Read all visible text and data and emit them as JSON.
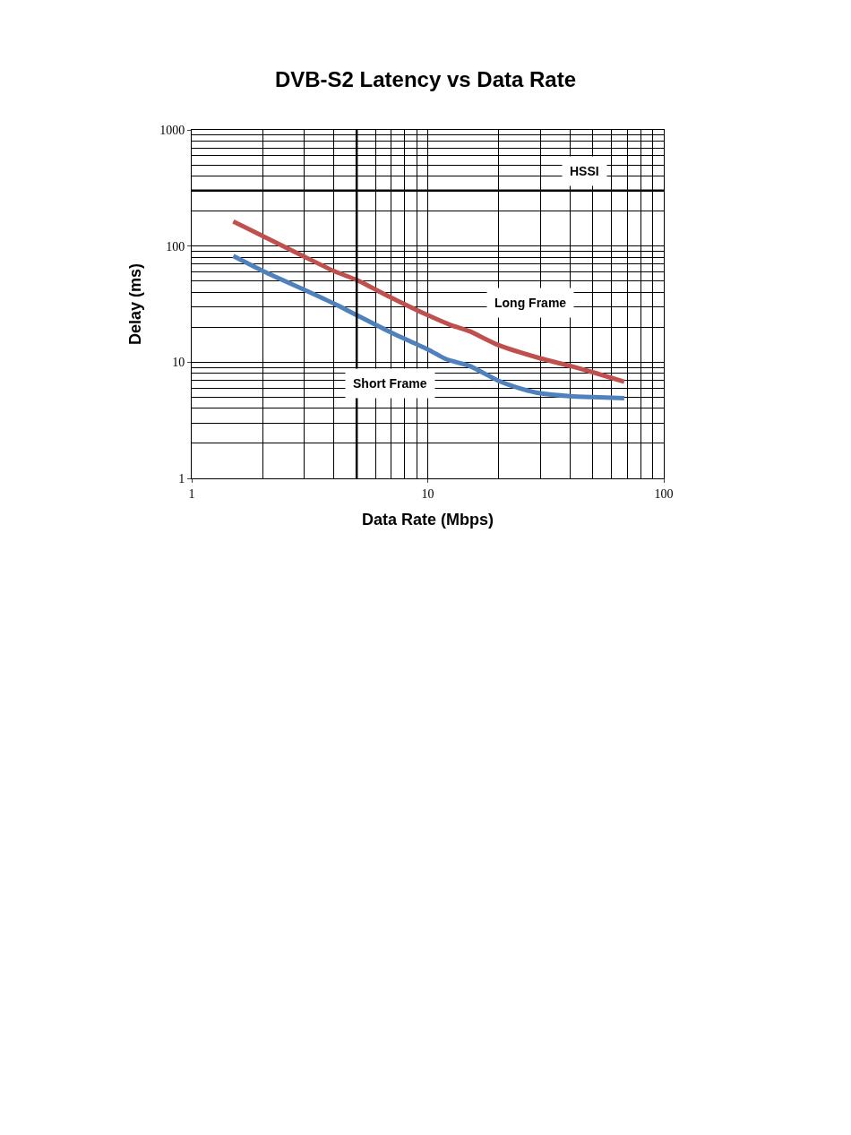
{
  "chart_data": {
    "type": "line",
    "title": "DVB-S2 Latency vs Data Rate",
    "xlabel": "Data Rate (Mbps)",
    "ylabel": "Delay (ms)",
    "log": "xy",
    "grid": true,
    "legend": false,
    "marker": "none",
    "line_style": "solid",
    "xlim": [
      1,
      100
    ],
    "xticks": [
      1,
      10,
      100
    ],
    "ylim": [
      1,
      1000
    ],
    "yticks": [
      1,
      10,
      100,
      1000
    ],
    "annotations": [
      "HSSI"
    ],
    "ref_lines": [
      {
        "axis": "x",
        "value": 5,
        "color": "#000000"
      },
      {
        "axis": "y",
        "value": 300,
        "color": "#000000"
      }
    ],
    "series": [
      {
        "name": "Long Frame",
        "color": "#c0504d",
        "x": [
          1.5,
          2,
          3,
          4,
          5,
          7,
          10,
          12.5,
          15,
          20,
          30,
          40,
          50,
          68
        ],
        "values": [
          163,
          122,
          81,
          61,
          51,
          36,
          25.4,
          20.9,
          18.5,
          14,
          10.8,
          9.3,
          8.2,
          6.8
        ]
      },
      {
        "name": "Short Frame",
        "color": "#4f81bd",
        "x": [
          1.5,
          2,
          3,
          4,
          5,
          7,
          10,
          12,
          15,
          20,
          25,
          30,
          40,
          50,
          68
        ],
        "values": [
          82,
          61,
          42,
          32,
          25.4,
          18,
          12.9,
          10.6,
          9.3,
          6.9,
          5.9,
          5.4,
          5.1,
          5.0,
          4.9
        ]
      }
    ]
  }
}
